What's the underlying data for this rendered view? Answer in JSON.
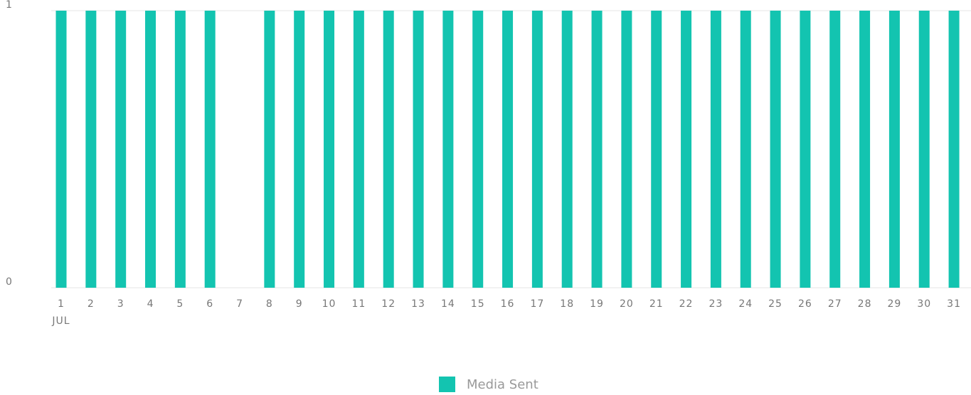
{
  "chart_data": {
    "type": "bar",
    "categories": [
      "1",
      "2",
      "3",
      "4",
      "5",
      "6",
      "7",
      "8",
      "9",
      "10",
      "11",
      "12",
      "13",
      "14",
      "15",
      "16",
      "17",
      "18",
      "19",
      "20",
      "21",
      "22",
      "23",
      "24",
      "25",
      "26",
      "27",
      "28",
      "29",
      "30",
      "31"
    ],
    "x_period_label": "JUL",
    "series": [
      {
        "name": "Media Sent",
        "color": "#13c4b0",
        "values": [
          1,
          1,
          1,
          1,
          1,
          1,
          0,
          1,
          1,
          1,
          1,
          1,
          1,
          1,
          1,
          1,
          1,
          1,
          1,
          1,
          1,
          1,
          1,
          1,
          1,
          1,
          1,
          1,
          1,
          1,
          1
        ]
      }
    ],
    "ylim": [
      0,
      1
    ],
    "yticks": [
      0,
      1
    ],
    "grid": true,
    "legend": "bottom"
  }
}
